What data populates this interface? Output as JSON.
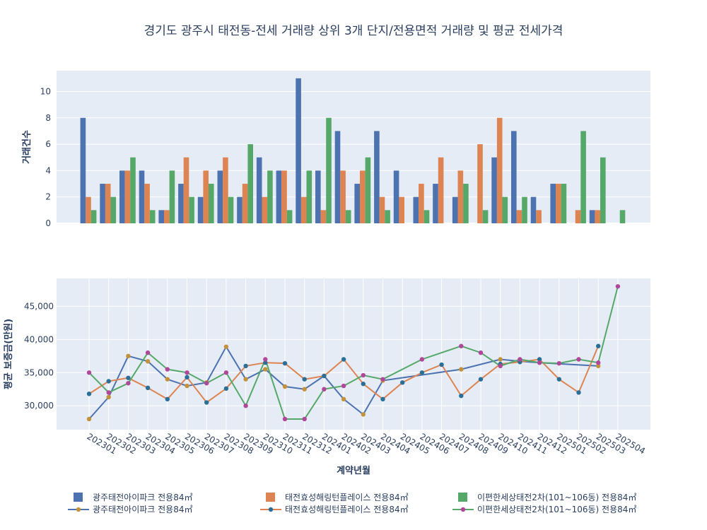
{
  "colors": {
    "plot_bg": "#E5ECF6",
    "grid": "#ffffff",
    "bar1": "#4C72B0",
    "bar2": "#DD8452",
    "bar3": "#55A868",
    "line1_marker": "#C4923A",
    "line2_marker": "#2A6F97",
    "line3_marker": "#B0479A"
  },
  "chart_data": [
    {
      "type": "bar",
      "title": "경기도 광주시 태전동-전세 거래량 상위 3개 단지/전용면적 거래량 및 평균 전세가격",
      "ylabel": "거래건수",
      "ylim": [
        0,
        11.58
      ],
      "yticks": [
        0,
        2,
        4,
        6,
        8,
        10
      ],
      "categories": [
        "202301",
        "202302",
        "202303",
        "202304",
        "202305",
        "202306",
        "202307",
        "202308",
        "202309",
        "202310",
        "202311",
        "202312",
        "202401",
        "202402",
        "202403",
        "202404",
        "202405",
        "202406",
        "202407",
        "202408",
        "202409",
        "202410",
        "202411",
        "202412",
        "202501",
        "202502",
        "202503",
        "202504"
      ],
      "series": [
        {
          "name": "광주태전아이파크 전용84㎡",
          "values": [
            8,
            3,
            4,
            4,
            1,
            3,
            2,
            4,
            2,
            5,
            4,
            11,
            4,
            7,
            3,
            7,
            4,
            2,
            3,
            2,
            null,
            5,
            7,
            2,
            3,
            null,
            1,
            null
          ]
        },
        {
          "name": "태전효성해링턴플레이스 전용84㎡",
          "values": [
            2,
            3,
            4,
            3,
            1,
            5,
            4,
            5,
            3,
            2,
            4,
            2,
            1,
            4,
            4,
            2,
            2,
            3,
            5,
            4,
            6,
            8,
            1,
            1,
            3,
            1,
            1,
            null
          ]
        },
        {
          "name": "이편한세상태전2차(101~106동) 전용84㎡",
          "values": [
            1,
            2,
            5,
            1,
            4,
            2,
            3,
            2,
            6,
            4,
            1,
            4,
            8,
            1,
            5,
            1,
            null,
            1,
            null,
            3,
            1,
            2,
            2,
            null,
            3,
            7,
            5,
            1
          ]
        }
      ]
    },
    {
      "type": "line",
      "xlabel": "계약년월",
      "ylabel": "평균 보증금(만원)",
      "ylim": [
        26400,
        49200
      ],
      "yticks": [
        30000,
        35000,
        40000,
        45000
      ],
      "ytick_labels": [
        "30,000",
        "35,000",
        "40,000",
        "45,000"
      ],
      "x": [
        "202301",
        "202302",
        "202303",
        "202304",
        "202305",
        "202306",
        "202307",
        "202308",
        "202309",
        "202310",
        "202311",
        "202312",
        "202401",
        "202402",
        "202403",
        "202404",
        "202405",
        "202406",
        "202407",
        "202408",
        "202409",
        "202410",
        "202411",
        "202412",
        "202501",
        "202502",
        "202503",
        "202504"
      ],
      "series": [
        {
          "name": "광주태전아이파크 전용84㎡",
          "values": [
            28000,
            31300,
            37500,
            36700,
            34000,
            33000,
            33500,
            38900,
            34000,
            35500,
            32900,
            32500,
            34500,
            31000,
            28700,
            33800,
            null,
            null,
            null,
            35500,
            null,
            37000,
            36700,
            36500,
            null,
            null,
            36000,
            null
          ]
        },
        {
          "name": "태전효성해링턴플레이스 전용84㎡",
          "values": [
            31800,
            33700,
            34200,
            32700,
            31000,
            34300,
            30500,
            32600,
            36000,
            36500,
            36400,
            34000,
            34500,
            37000,
            33300,
            31000,
            33500,
            35000,
            36200,
            31500,
            34000,
            36300,
            36600,
            37000,
            34000,
            32000,
            39000,
            null
          ]
        },
        {
          "name": "이편한세상태전2차(101~106동) 전용84㎡",
          "values": [
            35000,
            32000,
            33400,
            38000,
            35500,
            35000,
            33400,
            35000,
            30000,
            37000,
            28000,
            28000,
            32500,
            33000,
            34600,
            34000,
            null,
            37000,
            null,
            39000,
            38000,
            36000,
            37000,
            36500,
            36400,
            37000,
            36500,
            48000
          ]
        }
      ]
    }
  ]
}
